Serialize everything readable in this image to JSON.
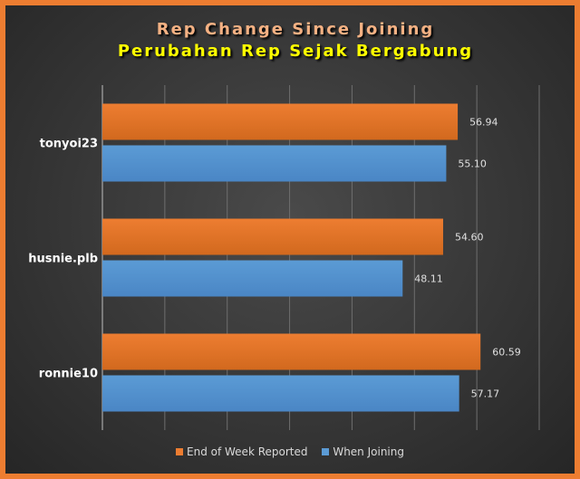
{
  "chart_data": {
    "type": "bar",
    "orientation": "horizontal",
    "title": "Rep Change Since Joining",
    "subtitle": "Perubahan Rep Sejak Bergabung",
    "categories": [
      "tonyoi23",
      "husnie.plb",
      "ronnie10"
    ],
    "series": [
      {
        "name": "End of Week Reported",
        "color": "#ed7d31",
        "values": [
          56.94,
          54.6,
          60.59
        ]
      },
      {
        "name": "When Joining",
        "color": "#5b9bd5",
        "values": [
          55.1,
          48.11,
          57.17
        ]
      }
    ],
    "value_labels": [
      [
        "56.94",
        "54.60",
        "60.59"
      ],
      [
        "55.10",
        "48.11",
        "57.17"
      ]
    ],
    "xlim": [
      0,
      70
    ],
    "grid": true,
    "legend_position": "bottom"
  }
}
